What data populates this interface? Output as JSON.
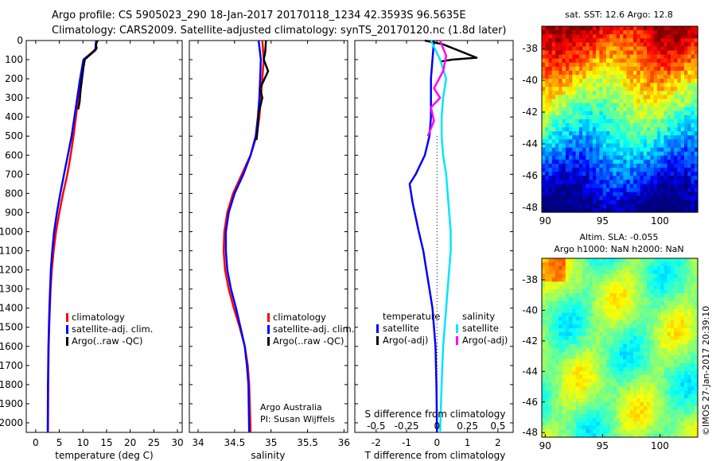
{
  "header": {
    "line1": "Argo profile: CS 5905023_290 18-Jan-2017 20170118_1234 42.3593S 96.5635E",
    "line2": "Climatology: CARS2009. Satellite-adjusted climatology: synTS_20170120.nc (1.8d later)"
  },
  "colors": {
    "climatology": "#ff0000",
    "satellite": "#0000ff",
    "argo": "#000000",
    "satellite_salinity": "#00e5ff",
    "argo_salinity": "#ff00ff"
  },
  "credit": {
    "org": "Argo Australia",
    "pi": "PI: Susan Wijffels"
  },
  "imos": "©IMOS 27-Jan-2017 20:39:10",
  "chart_data": [
    {
      "type": "line",
      "id": "temperature",
      "xlabel": "temperature (deg C)",
      "ylabel": "",
      "xlim": [
        -2,
        31
      ],
      "ylim": [
        2050,
        0
      ],
      "xticks": [
        0,
        5,
        10,
        15,
        20,
        25,
        30
      ],
      "yticks": [
        0,
        100,
        200,
        300,
        400,
        500,
        600,
        700,
        800,
        900,
        1000,
        1100,
        1200,
        1300,
        1400,
        1500,
        1600,
        1700,
        1800,
        1900,
        2000
      ],
      "legend": [
        "climatology",
        "satellite-adj. clim.",
        "Argo(..raw -QC)"
      ],
      "series": [
        {
          "name": "climatology",
          "color": "#ff0000",
          "x": [
            12.9,
            12.7,
            10.3,
            9.6,
            9.0,
            8.5,
            8.0,
            7.4,
            6.7,
            5.8,
            5.0,
            4.3,
            3.8,
            3.4,
            3.15,
            3.0,
            2.85,
            2.75,
            2.65,
            2.6
          ],
          "y": [
            0,
            50,
            100,
            200,
            300,
            400,
            500,
            600,
            700,
            800,
            900,
            1000,
            1100,
            1200,
            1300,
            1400,
            1500,
            1600,
            1800,
            2050
          ]
        },
        {
          "name": "satellite-adj. clim.",
          "color": "#0000ff",
          "x": [
            12.8,
            12.6,
            10.1,
            9.4,
            8.8,
            8.2,
            7.6,
            6.8,
            6.0,
            5.2,
            4.5,
            3.9,
            3.5,
            3.2,
            3.05,
            2.9,
            2.8,
            2.7,
            2.6,
            2.55
          ],
          "y": [
            0,
            50,
            100,
            200,
            300,
            400,
            500,
            600,
            700,
            800,
            900,
            1000,
            1100,
            1200,
            1300,
            1400,
            1500,
            1600,
            1800,
            2050
          ]
        },
        {
          "name": "Argo(..raw -QC)",
          "color": "#000000",
          "x": [
            13.1,
            12.7,
            12.9,
            11.2,
            10.4,
            10.1,
            9.8,
            9.5,
            9.3,
            9.0
          ],
          "y": [
            0,
            20,
            40,
            80,
            100,
            140,
            200,
            260,
            320,
            360
          ]
        }
      ]
    },
    {
      "type": "line",
      "id": "salinity",
      "xlabel": "salinity",
      "xlim": [
        33.88,
        36.05
      ],
      "ylim": [
        2050,
        0
      ],
      "xticks": [
        34,
        34.5,
        35,
        35.5,
        36
      ],
      "legend": [
        "climatology",
        "satellite-adj. clim.",
        "Argo(..raw -QC)"
      ],
      "series": [
        {
          "name": "climatology",
          "color": "#ff0000",
          "x": [
            34.88,
            34.9,
            34.88,
            34.86,
            34.84,
            34.8,
            34.72,
            34.6,
            34.48,
            34.4,
            34.36,
            34.35,
            34.37,
            34.42,
            34.49,
            34.57,
            34.64,
            34.68,
            34.7,
            34.72
          ],
          "y": [
            0,
            100,
            200,
            300,
            400,
            500,
            600,
            700,
            800,
            900,
            1000,
            1100,
            1200,
            1300,
            1400,
            1500,
            1600,
            1700,
            1800,
            2050
          ]
        },
        {
          "name": "satellite-adj. clim.",
          "color": "#0000ff",
          "x": [
            34.83,
            34.86,
            34.85,
            34.84,
            34.82,
            34.79,
            34.72,
            34.62,
            34.5,
            34.42,
            34.38,
            34.38,
            34.4,
            34.45,
            34.52,
            34.58,
            34.64,
            34.67,
            34.69,
            34.7
          ],
          "y": [
            0,
            100,
            200,
            300,
            400,
            500,
            600,
            700,
            800,
            900,
            1000,
            1100,
            1200,
            1300,
            1400,
            1500,
            1600,
            1700,
            1800,
            2050
          ]
        },
        {
          "name": "Argo(..raw -QC)",
          "color": "#000000",
          "x": [
            34.93,
            34.92,
            34.9,
            34.96,
            34.85,
            34.88,
            34.83,
            34.82,
            34.8
          ],
          "y": [
            0,
            60,
            100,
            160,
            250,
            300,
            380,
            450,
            520
          ]
        }
      ]
    },
    {
      "type": "line",
      "id": "difference",
      "xlabel": "T difference from climatology",
      "xlabel2": "S difference from climatology",
      "xlim": [
        -2.7,
        2.5
      ],
      "ylim": [
        2050,
        0
      ],
      "xticks": [
        -2,
        -1,
        0,
        1,
        2
      ],
      "xticks2": [
        "-0.5",
        "-0.25",
        "0",
        "0.25",
        "0.5"
      ],
      "legend_groups": [
        {
          "title": "temperature",
          "entries": [
            "satellite",
            "Argo(-adj)"
          ]
        },
        {
          "title": "salinity",
          "entries": [
            "satellite",
            "Argo(-adj)"
          ]
        }
      ],
      "series": [
        {
          "name": "temperature satellite",
          "color": "#0000ff",
          "x": [
            -0.1,
            -0.15,
            -0.2,
            -0.2,
            -0.2,
            -0.25,
            -0.4,
            -0.7,
            -0.9,
            -0.8,
            -0.6,
            -0.45,
            -0.35,
            -0.25,
            -0.15,
            -0.1,
            -0.05,
            -0.02,
            0
          ],
          "y": [
            0,
            100,
            200,
            300,
            400,
            500,
            600,
            700,
            750,
            850,
            1000,
            1100,
            1200,
            1300,
            1400,
            1500,
            1600,
            1800,
            2050
          ]
        },
        {
          "name": "temperature Argo(-adj)",
          "color": "#000000",
          "x": [
            -0.4,
            0.2,
            1.3,
            0.5,
            0.1
          ],
          "y": [
            0,
            20,
            90,
            100,
            110
          ]
        },
        {
          "name": "salinity satellite",
          "color": "#00e5ff",
          "x": [
            -0.2,
            0.1,
            0.3,
            0.2,
            0.15,
            0.15,
            0.2,
            0.3,
            0.35,
            0.4,
            0.45,
            0.45,
            0.4,
            0.35,
            0.3,
            0.25,
            0.2,
            0.15,
            0.1
          ],
          "y": [
            0,
            100,
            200,
            300,
            400,
            500,
            600,
            700,
            800,
            900,
            1000,
            1100,
            1200,
            1300,
            1400,
            1500,
            1600,
            1800,
            2050
          ]
        },
        {
          "name": "salinity Argo(-adj)",
          "color": "#ff00ff",
          "x": [
            0.1,
            0.3,
            0.2,
            -0.1,
            0.1,
            -0.2,
            -0.1,
            -0.3
          ],
          "y": [
            0,
            80,
            160,
            250,
            300,
            350,
            420,
            500
          ]
        }
      ]
    },
    {
      "type": "heatmap",
      "id": "sst-map",
      "title": "sat. SST: 12.6 Argo: 12.8",
      "xticks": [
        90,
        95,
        100
      ],
      "yticks": [
        -38,
        -40,
        -42,
        -44,
        -46,
        -48
      ],
      "xlim": [
        89.7,
        103.3
      ],
      "ylim": [
        -48.3,
        -36.6
      ],
      "colorscale": "jet"
    },
    {
      "type": "heatmap",
      "id": "sla-map",
      "title": "Altim. SLA: -0.055",
      "subtitle": "Argo h1000: NaN h2000: NaN",
      "xticks": [
        90,
        95,
        100
      ],
      "yticks": [
        -38,
        -40,
        -42,
        -44,
        -46,
        -48
      ],
      "xlim": [
        89.7,
        103.3
      ],
      "ylim": [
        -48.3,
        -36.6
      ],
      "colorscale": "jet"
    }
  ]
}
